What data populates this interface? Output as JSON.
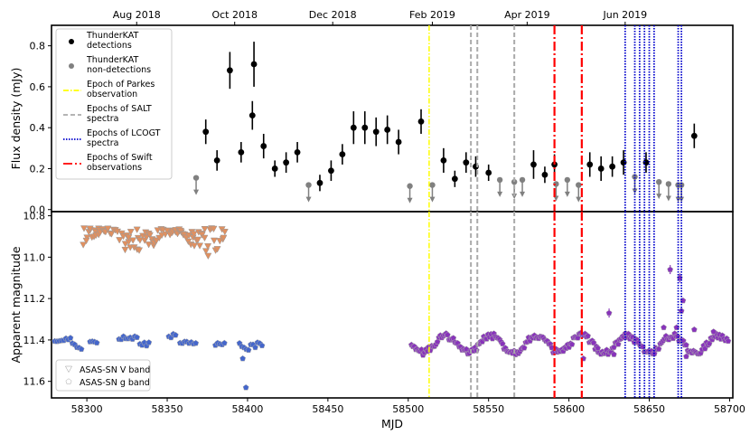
{
  "chart_data": {
    "type": "scatter",
    "x_axis": {
      "label": "MJD",
      "range": [
        58278,
        58702
      ],
      "ticks": [
        58300,
        58350,
        58400,
        58450,
        58500,
        58550,
        58600,
        58650,
        58700
      ],
      "top_ticks": [
        {
          "label": "Aug 2018",
          "mjd": 58331
        },
        {
          "label": "Oct 2018",
          "mjd": 58392
        },
        {
          "label": "Dec 2018",
          "mjd": 58453
        },
        {
          "label": "Feb 2019",
          "mjd": 58515
        },
        {
          "label": "Apr 2019",
          "mjd": 58574
        },
        {
          "label": "Jun 2019",
          "mjd": 58635
        }
      ]
    },
    "top_panel": {
      "ylabel": "Flux density (mJy)",
      "ylim": [
        -0.01,
        0.9
      ],
      "yticks": [
        0.0,
        0.2,
        0.4,
        0.6,
        0.8
      ],
      "tick_labels": [
        "0.0",
        "0.2",
        "0.4",
        "0.6",
        "0.8"
      ],
      "legend": [
        {
          "key": "det",
          "label1": "ThunderKAT",
          "label2": "detections"
        },
        {
          "key": "nondet",
          "label1": "ThunderKAT",
          "label2": "non-detections"
        },
        {
          "key": "parkes",
          "label1": "Epoch of Parkes",
          "label2": "observation"
        },
        {
          "key": "salt",
          "label1": "Epochs of SALT",
          "label2": "spectra"
        },
        {
          "key": "lcogt",
          "label1": "Epochs of LCOGT",
          "label2": "spectra"
        },
        {
          "key": "swift",
          "label1": "Epochs of Swift",
          "label2": "observations"
        }
      ],
      "detections": [
        {
          "x": 58374,
          "y": 0.38,
          "err": 0.06
        },
        {
          "x": 58381,
          "y": 0.24,
          "err": 0.05
        },
        {
          "x": 58389,
          "y": 0.68,
          "err": 0.09
        },
        {
          "x": 58396,
          "y": 0.28,
          "err": 0.05
        },
        {
          "x": 58403,
          "y": 0.46,
          "err": 0.07
        },
        {
          "x": 58404,
          "y": 0.71,
          "err": 0.11
        },
        {
          "x": 58410,
          "y": 0.31,
          "err": 0.06
        },
        {
          "x": 58417,
          "y": 0.2,
          "err": 0.04
        },
        {
          "x": 58424,
          "y": 0.23,
          "err": 0.05
        },
        {
          "x": 58431,
          "y": 0.28,
          "err": 0.05
        },
        {
          "x": 58445,
          "y": 0.13,
          "err": 0.04
        },
        {
          "x": 58452,
          "y": 0.19,
          "err": 0.05
        },
        {
          "x": 58459,
          "y": 0.27,
          "err": 0.05
        },
        {
          "x": 58466,
          "y": 0.4,
          "err": 0.08
        },
        {
          "x": 58473,
          "y": 0.4,
          "err": 0.08
        },
        {
          "x": 58480,
          "y": 0.38,
          "err": 0.07
        },
        {
          "x": 58487,
          "y": 0.39,
          "err": 0.07
        },
        {
          "x": 58494,
          "y": 0.33,
          "err": 0.06
        },
        {
          "x": 58508,
          "y": 0.43,
          "err": 0.06
        },
        {
          "x": 58522,
          "y": 0.24,
          "err": 0.06
        },
        {
          "x": 58529,
          "y": 0.15,
          "err": 0.04
        },
        {
          "x": 58536,
          "y": 0.23,
          "err": 0.05
        },
        {
          "x": 58542,
          "y": 0.21,
          "err": 0.05
        },
        {
          "x": 58550,
          "y": 0.18,
          "err": 0.04
        },
        {
          "x": 58578,
          "y": 0.22,
          "err": 0.07
        },
        {
          "x": 58585,
          "y": 0.17,
          "err": 0.04
        },
        {
          "x": 58591,
          "y": 0.22,
          "err": 0.05
        },
        {
          "x": 58613,
          "y": 0.22,
          "err": 0.06
        },
        {
          "x": 58620,
          "y": 0.2,
          "err": 0.06
        },
        {
          "x": 58627,
          "y": 0.21,
          "err": 0.05
        },
        {
          "x": 58634,
          "y": 0.23,
          "err": 0.06
        },
        {
          "x": 58648,
          "y": 0.23,
          "err": 0.05
        },
        {
          "x": 58678,
          "y": 0.36,
          "err": 0.06
        }
      ],
      "non_detections": [
        58368,
        58438,
        58501,
        58515,
        58557,
        58566,
        58571,
        58592,
        58599,
        58606,
        58641,
        58656,
        58662,
        58668,
        58670
      ],
      "non_detection_levels": [
        0.155,
        0.12,
        0.115,
        0.12,
        0.145,
        0.135,
        0.145,
        0.125,
        0.145,
        0.12,
        0.16,
        0.135,
        0.125,
        0.12,
        0.12
      ],
      "parkes_epochs": [
        58513
      ],
      "salt_epochs": [
        58539,
        58543,
        58566
      ],
      "lcogt_epochs": [
        58635,
        58641,
        58644,
        58647,
        58650,
        58653,
        58668,
        58670
      ],
      "swift_epochs": [
        58591,
        58608
      ]
    },
    "bottom_panel": {
      "ylabel": "Apparent magnitude",
      "ylim": [
        11.68,
        10.78
      ],
      "yticks": [
        10.8,
        11.0,
        11.2,
        11.4,
        11.6
      ],
      "tick_labels": [
        "10.8",
        "11.0",
        "11.2",
        "11.4",
        "11.6"
      ],
      "legend": [
        {
          "key": "v",
          "label": "ASAS-SN V band"
        },
        {
          "key": "g",
          "label": "ASAS-SN g band"
        }
      ],
      "v_band_ranges": [
        [
          58297,
          58386,
          10.86,
          11.0
        ]
      ],
      "g_band_blocks": [
        [
          58280,
          58290,
          11.4,
          0.025
        ],
        [
          58291,
          58297,
          11.43,
          0.03
        ],
        [
          58302,
          58307,
          11.41,
          0.015
        ],
        [
          58320,
          58332,
          11.39,
          0.015
        ],
        [
          58333,
          58340,
          11.42,
          0.02
        ],
        [
          58351,
          58356,
          11.38,
          0.02
        ],
        [
          58358,
          58368,
          11.41,
          0.02
        ],
        [
          58380,
          58386,
          11.42,
          0.015
        ],
        [
          58395,
          58410,
          11.43,
          0.04
        ],
        [
          58502,
          58700,
          11.42,
          0.04
        ]
      ],
      "g_band_outliers": [
        {
          "x": 58399,
          "y": 11.63
        },
        {
          "x": 58397,
          "y": 11.49
        },
        {
          "x": 58609,
          "y": 11.49
        },
        {
          "x": 58618,
          "y": 11.44
        },
        {
          "x": 58628,
          "y": 11.47
        },
        {
          "x": 58659,
          "y": 11.34
        },
        {
          "x": 58667,
          "y": 11.34
        },
        {
          "x": 58670,
          "y": 11.26
        },
        {
          "x": 58671,
          "y": 11.21
        },
        {
          "x": 58673,
          "y": 11.48
        },
        {
          "x": 58678,
          "y": 11.35
        },
        {
          "x": 58690,
          "y": 11.36
        }
      ],
      "g_band_isolated": [
        {
          "x": 58625,
          "y": 11.27
        },
        {
          "x": 58663,
          "y": 11.06
        },
        {
          "x": 58669,
          "y": 11.1
        }
      ]
    },
    "colors": {
      "detections": "#000000",
      "non_detections": "#808080",
      "parkes": "#ffff00",
      "salt": "#aaaaaa",
      "lcogt": "#0000cc",
      "swift": "#ff0000",
      "v_band": "#e09060",
      "g_band_early": "#4466cc",
      "g_band_late": "#8833bb"
    }
  }
}
